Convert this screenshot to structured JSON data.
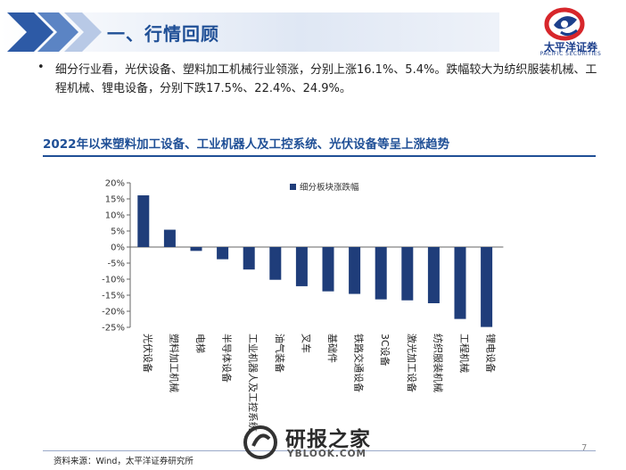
{
  "header": {
    "title": "一、行情回顾",
    "logo_text": "太平洋证券",
    "logo_subtext": "PACIFIC SECURITIES"
  },
  "content": {
    "bullet_symbol": "•",
    "bullet_text": "细分行业看，光伏设备、塑料加工机械行业领涨，分别上涨16.1%、5.4%。跌幅较大为纺织服装机械、工程机械、锂电设备，分别下跌17.5%、22.4%、24.9%。"
  },
  "chart_data": {
    "type": "bar",
    "title": "2022年以来塑料加工设备、工业机器人及工控系统、光伏设备等呈上涨趋势",
    "legend": "细分板块涨跌幅",
    "categories": [
      "光伏设备",
      "塑料加工机械",
      "电梯",
      "半导体设备",
      "工业机器人及工控系统",
      "油气装备",
      "叉车",
      "基础件",
      "铁路交通设备",
      "3C设备",
      "激光加工设备",
      "纺织服装机械",
      "工程机械",
      "锂电设备"
    ],
    "values": [
      16.1,
      5.4,
      -1.2,
      -3.8,
      -7.0,
      -10.2,
      -12.2,
      -13.8,
      -14.6,
      -16.3,
      -16.6,
      -17.5,
      -22.4,
      -24.9
    ],
    "y_ticks": [
      "20%",
      "15%",
      "10%",
      "5%",
      "0%",
      "-5%",
      "-10%",
      "-15%",
      "-20%",
      "-25%"
    ],
    "ylim": [
      -25,
      20
    ],
    "bar_color": "#1f3d7a",
    "grid": false
  },
  "footer": {
    "source": "资料来源：Wind，太平洋证券研究所",
    "page_number": "7"
  },
  "watermark": {
    "text": "研报之家",
    "url": "YBLOOK.COM"
  },
  "colors": {
    "accent": "#1f4f96",
    "logo_red": "#d7262b"
  }
}
